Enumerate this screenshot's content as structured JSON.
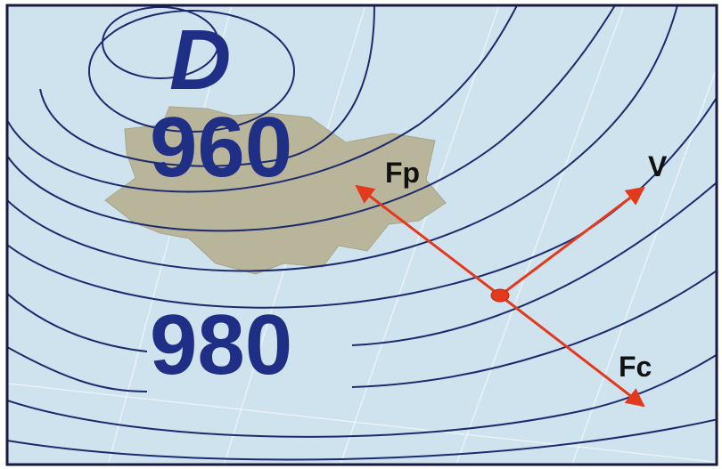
{
  "map": {
    "low_label": "D",
    "isobar_inner_label": "960",
    "isobar_outer_label": "980"
  },
  "vectors": {
    "pressure_force_label": "Fp",
    "velocity_label": "V",
    "coriolis_force_label": "Fc"
  },
  "colors": {
    "sea_background": "#cfe3ee",
    "isobar_line": "#1c2a6e",
    "isobar_label": "#1f2f86",
    "landmass": "#b9b59a",
    "vector_arrow": "#e33a1e",
    "frame_border": "#1a1a40"
  }
}
